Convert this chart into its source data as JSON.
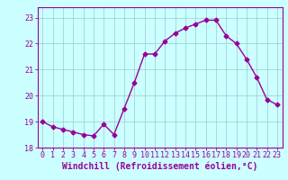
{
  "x": [
    0,
    1,
    2,
    3,
    4,
    5,
    6,
    7,
    8,
    9,
    10,
    11,
    12,
    13,
    14,
    15,
    16,
    17,
    18,
    19,
    20,
    21,
    22,
    23
  ],
  "y": [
    19.0,
    18.8,
    18.7,
    18.6,
    18.5,
    18.45,
    18.9,
    18.5,
    19.5,
    20.5,
    21.6,
    21.6,
    22.1,
    22.4,
    22.6,
    22.75,
    22.9,
    22.9,
    22.3,
    22.0,
    21.4,
    20.7,
    19.85,
    19.65
  ],
  "color": "#990099",
  "bg_color": "#ccffff",
  "grid_color": "#99cccc",
  "xlabel": "Windchill (Refroidissement éolien,°C)",
  "ylim": [
    18.0,
    23.4
  ],
  "yticks": [
    18,
    19,
    20,
    21,
    22,
    23
  ],
  "xlim": [
    -0.5,
    23.5
  ],
  "xticks": [
    0,
    1,
    2,
    3,
    4,
    5,
    6,
    7,
    8,
    9,
    10,
    11,
    12,
    13,
    14,
    15,
    16,
    17,
    18,
    19,
    20,
    21,
    22,
    23
  ],
  "marker": "D",
  "markersize": 2.5,
  "linewidth": 1.0,
  "tick_fontsize": 6.0,
  "xlabel_fontsize": 7.0
}
